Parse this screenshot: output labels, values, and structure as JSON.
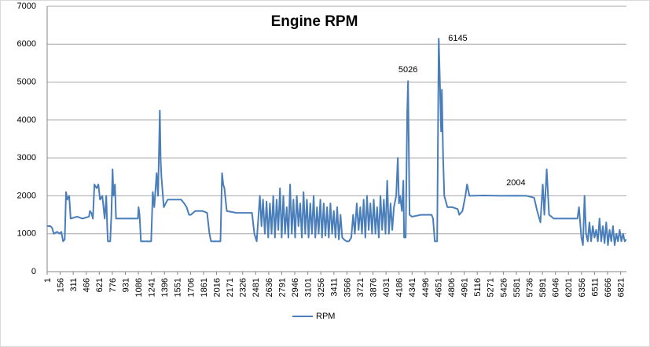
{
  "chart_data": {
    "type": "line",
    "title": "Engine RPM",
    "x": [
      1,
      40,
      60,
      80,
      120,
      150,
      170,
      190,
      210,
      226,
      240,
      263,
      280,
      357,
      420,
      498,
      510,
      526,
      545,
      563,
      590,
      610,
      630,
      657,
      685,
      704,
      715,
      723,
      751,
      765,
      779,
      790,
      807,
      820,
      900,
      1000,
      1080,
      1088,
      1100,
      1116,
      1180,
      1238,
      1257,
      1275,
      1303,
      1320,
      1341,
      1350,
      1360,
      1388,
      1410,
      1435,
      1500,
      1594,
      1631,
      1660,
      1688,
      1710,
      1763,
      1850,
      1903,
      1931,
      1950,
      2000,
      2062,
      2081,
      2095,
      2109,
      2137,
      2250,
      2350,
      2437,
      2465,
      2493,
      2531,
      2550,
      2568,
      2590,
      2610,
      2630,
      2650,
      2670,
      2690,
      2710,
      2730,
      2750,
      2770,
      2790,
      2810,
      2830,
      2850,
      2870,
      2890,
      2910,
      2930,
      2950,
      2970,
      2990,
      3010,
      3030,
      3050,
      3070,
      3090,
      3110,
      3130,
      3150,
      3170,
      3190,
      3210,
      3230,
      3250,
      3270,
      3290,
      3310,
      3330,
      3350,
      3370,
      3390,
      3410,
      3430,
      3450,
      3470,
      3490,
      3510,
      3530,
      3560,
      3590,
      3618,
      3640,
      3660,
      3683,
      3705,
      3725,
      3745,
      3765,
      3785,
      3805,
      3825,
      3845,
      3865,
      3885,
      3905,
      3925,
      3945,
      3965,
      3985,
      4005,
      4025,
      4045,
      4065,
      4085,
      4105,
      4125,
      4152,
      4171,
      4185,
      4199,
      4220,
      4237,
      4246,
      4265,
      4283,
      4293,
      4311,
      4339,
      4450,
      4573,
      4590,
      4611,
      4639,
      4658,
      4672,
      4686,
      4695,
      4710,
      4724,
      4761,
      4820,
      4883,
      4902,
      4940,
      4975,
      4995,
      5023,
      5200,
      5400,
      5576,
      5700,
      5792,
      5829,
      5867,
      5895,
      5914,
      5942,
      5970,
      6026,
      6150,
      6307,
      6326,
      6354,
      6373,
      6392,
      6410,
      6430,
      6450,
      6470,
      6490,
      6510,
      6530,
      6550,
      6570,
      6590,
      6610,
      6630,
      6650,
      6670,
      6690,
      6710,
      6730,
      6750,
      6770,
      6790,
      6810,
      6830,
      6850,
      6870,
      6888
    ],
    "series": [
      {
        "name": "RPM",
        "color": "#4a7ebb",
        "values": [
          1200,
          1200,
          1150,
          1000,
          1050,
          1000,
          1050,
          800,
          850,
          2100,
          1900,
          2000,
          1400,
          1450,
          1400,
          1450,
          1600,
          1550,
          1400,
          2300,
          2200,
          2300,
          1900,
          2000,
          1400,
          2000,
          1200,
          800,
          800,
          1500,
          2700,
          2000,
          2300,
          1400,
          1400,
          1400,
          1400,
          1700,
          1500,
          800,
          800,
          800,
          2100,
          1700,
          2600,
          2000,
          4250,
          3000,
          2500,
          1700,
          1800,
          1900,
          1900,
          1900,
          1800,
          1700,
          1500,
          1500,
          1600,
          1600,
          1550,
          1000,
          800,
          800,
          800,
          2600,
          2300,
          2200,
          1600,
          1550,
          1550,
          1550,
          1000,
          800,
          2000,
          1200,
          1900,
          1000,
          1850,
          900,
          1800,
          1000,
          2000,
          900,
          1900,
          1100,
          2200,
          900,
          2000,
          1000,
          1700,
          900,
          2300,
          1000,
          1900,
          900,
          2000,
          1200,
          1800,
          900,
          2100,
          1000,
          1900,
          900,
          1800,
          1000,
          2000,
          900,
          1700,
          1000,
          1900,
          900,
          1800,
          950,
          1700,
          900,
          1800,
          1000,
          1600,
          900,
          1700,
          850,
          1500,
          900,
          850,
          800,
          800,
          900,
          1500,
          1000,
          1800,
          1100,
          1700,
          1000,
          1900,
          900,
          2000,
          1100,
          1800,
          1000,
          1900,
          1000,
          1700,
          900,
          2000,
          1100,
          1900,
          1000,
          2400,
          1000,
          1800,
          1100,
          1700,
          2000,
          3000,
          1800,
          2000,
          1600,
          2400,
          900,
          900,
          4200,
          5026,
          1500,
          1450,
          1500,
          1500,
          1400,
          800,
          800,
          6145,
          5000,
          3700,
          4800,
          3000,
          2000,
          1700,
          1700,
          1650,
          1500,
          1600,
          2000,
          2300,
          2000,
          2010,
          2000,
          2004,
          2000,
          1950,
          1600,
          1300,
          2300,
          1500,
          2700,
          1500,
          1400,
          1400,
          1400,
          1700,
          900,
          700,
          2000,
          1000,
          800,
          1300,
          800,
          1200,
          900,
          1100,
          800,
          1400,
          800,
          1200,
          750,
          1300,
          700,
          1100,
          800,
          1200,
          700,
          1000,
          800,
          1100,
          800,
          1000,
          800,
          850
        ]
      }
    ],
    "annotations": [
      {
        "x": 4293,
        "value": 5026
      },
      {
        "x": 4658,
        "value": 6145
      },
      {
        "x": 5576,
        "value": 2004
      }
    ],
    "xlim": [
      1,
      6890
    ],
    "xticks": [
      1,
      156,
      311,
      466,
      621,
      776,
      931,
      1086,
      1241,
      1396,
      1551,
      1706,
      1861,
      2016,
      2171,
      2326,
      2481,
      2636,
      2791,
      2946,
      3101,
      3256,
      3411,
      3566,
      3721,
      3876,
      4031,
      4186,
      4341,
      4496,
      4651,
      4806,
      4961,
      5116,
      5271,
      5426,
      5581,
      5736,
      5891,
      6046,
      6201,
      6356,
      6511,
      6666,
      6821
    ],
    "ylim": [
      0,
      7000
    ],
    "yticks": [
      0,
      1000,
      2000,
      3000,
      4000,
      5000,
      6000,
      7000
    ],
    "grid": true,
    "legend": "bottom"
  }
}
